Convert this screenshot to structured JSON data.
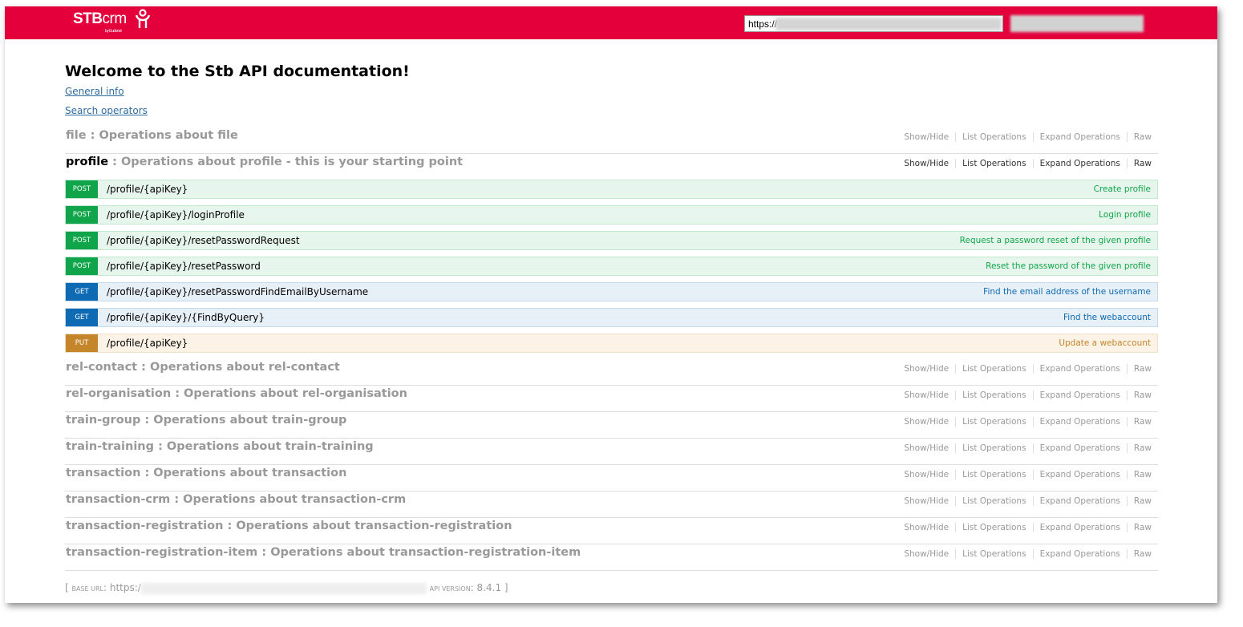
{
  "header": {
    "logo_text": "STBcrm",
    "logo_sub": "by Eudonet",
    "url_prefix": "https://",
    "brand_color": "#e3003b"
  },
  "main": {
    "title": "Welcome to the Stb API documentation!",
    "links": [
      "General info",
      "Search operators"
    ],
    "actions": [
      "Show/Hide",
      "List Operations",
      "Expand Operations",
      "Raw"
    ],
    "sections_before": [
      {
        "name": "file",
        "desc": " : Operations about file"
      }
    ],
    "profile": {
      "name": "profile",
      "desc": " : Operations about profile - this is your starting point",
      "operations": [
        {
          "method": "POST",
          "path": "/profile/{apiKey}",
          "summary": "Create profile"
        },
        {
          "method": "POST",
          "path": "/profile/{apiKey}/loginProfile",
          "summary": "Login profile"
        },
        {
          "method": "POST",
          "path": "/profile/{apiKey}/resetPasswordRequest",
          "summary": "Request a password reset of the given profile"
        },
        {
          "method": "POST",
          "path": "/profile/{apiKey}/resetPassword",
          "summary": "Reset the password of the given profile"
        },
        {
          "method": "GET",
          "path": "/profile/{apiKey}/resetPasswordFindEmailByUsername",
          "summary": "Find the email address of the username"
        },
        {
          "method": "GET",
          "path": "/profile/{apiKey}/{FindByQuery}",
          "summary": "Find the webaccount"
        },
        {
          "method": "PUT",
          "path": "/profile/{apiKey}",
          "summary": "Update a webaccount"
        }
      ]
    },
    "sections_after": [
      {
        "name": "rel-contact",
        "desc": " : Operations about rel-contact"
      },
      {
        "name": "rel-organisation",
        "desc": " : Operations about rel-organisation"
      },
      {
        "name": "train-group",
        "desc": " : Operations about train-group"
      },
      {
        "name": "train-training",
        "desc": " : Operations about train-training"
      },
      {
        "name": "transaction",
        "desc": " : Operations about transaction"
      },
      {
        "name": "transaction-crm",
        "desc": " : Operations about transaction-crm"
      },
      {
        "name": "transaction-registration",
        "desc": " : Operations about transaction-registration"
      },
      {
        "name": "transaction-registration-item",
        "desc": " : Operations about transaction-registration-item"
      }
    ]
  },
  "footer": {
    "open": "[ ",
    "base_url_label": "Base URL",
    "base_url_value": ": https:/",
    "api_version_label": "api version",
    "api_version_value": ": 8.4.1 ]"
  }
}
